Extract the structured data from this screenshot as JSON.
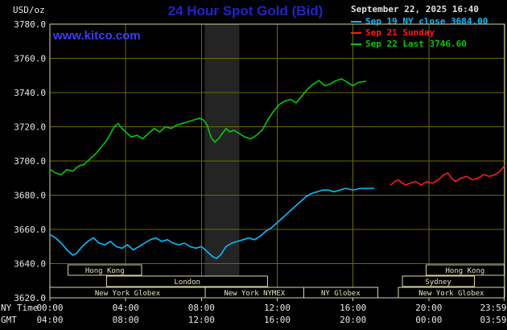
{
  "header": {
    "units": "USD/oz",
    "title": "24 Hour Spot Gold (Bid)",
    "datetime": "September 22, 2025 16:40",
    "watermark": "www.kitco.com"
  },
  "legend": [
    {
      "label": "Sep 19 NY close 3684.00",
      "color": "#00bfff"
    },
    {
      "label": "Sep 21 Sunday",
      "color": "#ff1a1a"
    },
    {
      "label": "Sep 22 Last 3746.60",
      "color": "#00cc00"
    }
  ],
  "chart_data": {
    "type": "line",
    "title": "24 Hour Spot Gold (Bid)",
    "xlabel": "time (NY Time / GMT)",
    "ylabel": "USD/oz",
    "ylim": [
      3620,
      3780
    ],
    "xlim_hours": [
      0,
      24
    ],
    "grid": true,
    "legend_position": "top-right",
    "y_ticks": [
      3620,
      3640,
      3660,
      3680,
      3700,
      3720,
      3740,
      3760,
      3780
    ],
    "x_axis_rows": [
      "NY Time",
      "GMT"
    ],
    "x_ticks": [
      {
        "hour": 0,
        "ny": "00:00",
        "gmt": "04:00"
      },
      {
        "hour": 4,
        "ny": "04:00",
        "gmt": "08:00"
      },
      {
        "hour": 8,
        "ny": "08:00",
        "gmt": "12:00"
      },
      {
        "hour": 12,
        "ny": "12:00",
        "gmt": "16:00"
      },
      {
        "hour": 16,
        "ny": "16:00",
        "gmt": "20:00"
      },
      {
        "hour": 20,
        "ny": "20:00",
        "gmt": "00:00"
      },
      {
        "hour": 23.983,
        "ny": "23:59",
        "gmt": "03:59"
      }
    ],
    "colors": {
      "background": "#000000",
      "grid": "#6b6b00",
      "frame": "#d6d6a0",
      "text": "#e8e8e8",
      "session_text": "#e6e6b8",
      "band": "#242424"
    },
    "shaded_bands": [
      {
        "start": 8.17,
        "end": 10.0
      }
    ],
    "sessions": [
      {
        "row": 0,
        "label": "Hong Kong",
        "start": 0.95,
        "end": 4.85
      },
      {
        "row": 0,
        "label": "Hong Kong",
        "start": 19.85,
        "end": 23.98
      },
      {
        "row": 1,
        "label": "London",
        "start": 3.0,
        "end": 11.5
      },
      {
        "row": 1,
        "label": "Sydney",
        "start": 18.6,
        "end": 22.4
      },
      {
        "row": 2,
        "label": "New York Globex",
        "start": 0.0,
        "end": 8.2
      },
      {
        "row": 2,
        "label": "New York NYMEX",
        "start": 8.2,
        "end": 13.4
      },
      {
        "row": 2,
        "label": "NY Globex",
        "start": 13.4,
        "end": 17.3
      },
      {
        "row": 2,
        "label": "New York Globex",
        "start": 18.4,
        "end": 23.98
      }
    ],
    "series": [
      {
        "name": "Sep 19 NY close 3684.00",
        "color": "#00bfff",
        "close": 3684.0,
        "points": [
          [
            0,
            3657
          ],
          [
            0.3,
            3655
          ],
          [
            0.6,
            3652
          ],
          [
            0.9,
            3648
          ],
          [
            1.2,
            3645
          ],
          [
            1.4,
            3646
          ],
          [
            1.7,
            3650
          ],
          [
            2.0,
            3653
          ],
          [
            2.3,
            3655
          ],
          [
            2.6,
            3652
          ],
          [
            2.9,
            3651
          ],
          [
            3.2,
            3653
          ],
          [
            3.5,
            3650
          ],
          [
            3.8,
            3649
          ],
          [
            4.1,
            3651
          ],
          [
            4.4,
            3648
          ],
          [
            4.7,
            3650
          ],
          [
            5.0,
            3652
          ],
          [
            5.3,
            3654
          ],
          [
            5.6,
            3655
          ],
          [
            5.9,
            3653
          ],
          [
            6.2,
            3654
          ],
          [
            6.5,
            3652
          ],
          [
            6.8,
            3651
          ],
          [
            7.1,
            3652
          ],
          [
            7.4,
            3650
          ],
          [
            7.7,
            3649
          ],
          [
            8.0,
            3650
          ],
          [
            8.3,
            3647
          ],
          [
            8.6,
            3644
          ],
          [
            8.8,
            3643
          ],
          [
            9.0,
            3645
          ],
          [
            9.3,
            3650
          ],
          [
            9.6,
            3652
          ],
          [
            9.9,
            3653
          ],
          [
            10.2,
            3654
          ],
          [
            10.5,
            3655
          ],
          [
            10.8,
            3654
          ],
          [
            11.1,
            3656
          ],
          [
            11.4,
            3659
          ],
          [
            11.7,
            3661
          ],
          [
            12.0,
            3664
          ],
          [
            12.3,
            3667
          ],
          [
            12.6,
            3670
          ],
          [
            12.9,
            3673
          ],
          [
            13.2,
            3676
          ],
          [
            13.5,
            3679
          ],
          [
            13.8,
            3681
          ],
          [
            14.1,
            3682
          ],
          [
            14.4,
            3683
          ],
          [
            14.7,
            3683
          ],
          [
            15.0,
            3682
          ],
          [
            15.3,
            3683
          ],
          [
            15.6,
            3684
          ],
          [
            16.0,
            3683
          ],
          [
            16.4,
            3684
          ],
          [
            16.8,
            3684
          ],
          [
            17.1,
            3684
          ]
        ]
      },
      {
        "name": "Sep 21 Sunday",
        "color": "#ff1a1a",
        "points": [
          [
            18.0,
            3686
          ],
          [
            18.2,
            3688
          ],
          [
            18.4,
            3689
          ],
          [
            18.6,
            3687
          ],
          [
            18.8,
            3686
          ],
          [
            19.0,
            3687
          ],
          [
            19.3,
            3688
          ],
          [
            19.6,
            3686
          ],
          [
            19.9,
            3688
          ],
          [
            20.2,
            3687
          ],
          [
            20.5,
            3689
          ],
          [
            20.8,
            3692
          ],
          [
            21.0,
            3693
          ],
          [
            21.2,
            3690
          ],
          [
            21.4,
            3688
          ],
          [
            21.7,
            3690
          ],
          [
            22.0,
            3691
          ],
          [
            22.3,
            3689
          ],
          [
            22.6,
            3690
          ],
          [
            22.9,
            3692
          ],
          [
            23.2,
            3691
          ],
          [
            23.5,
            3692
          ],
          [
            23.75,
            3694
          ],
          [
            23.98,
            3697
          ]
        ]
      },
      {
        "name": "Sep 22 Last 3746.60",
        "color": "#00cc00",
        "last": 3746.6,
        "points": [
          [
            0,
            3695
          ],
          [
            0.3,
            3693
          ],
          [
            0.6,
            3692
          ],
          [
            0.9,
            3695
          ],
          [
            1.2,
            3694
          ],
          [
            1.5,
            3697
          ],
          [
            1.8,
            3698
          ],
          [
            2.1,
            3701
          ],
          [
            2.4,
            3704
          ],
          [
            2.7,
            3708
          ],
          [
            3.0,
            3712
          ],
          [
            3.2,
            3716
          ],
          [
            3.4,
            3720
          ],
          [
            3.6,
            3722
          ],
          [
            3.8,
            3719
          ],
          [
            4.0,
            3717
          ],
          [
            4.3,
            3714
          ],
          [
            4.6,
            3715
          ],
          [
            4.9,
            3713
          ],
          [
            5.2,
            3716
          ],
          [
            5.5,
            3719
          ],
          [
            5.8,
            3717
          ],
          [
            6.1,
            3720
          ],
          [
            6.4,
            3719
          ],
          [
            6.7,
            3721
          ],
          [
            7.0,
            3722
          ],
          [
            7.3,
            3723
          ],
          [
            7.6,
            3724
          ],
          [
            7.9,
            3725
          ],
          [
            8.1,
            3724
          ],
          [
            8.3,
            3721
          ],
          [
            8.5,
            3714
          ],
          [
            8.7,
            3711
          ],
          [
            8.9,
            3713
          ],
          [
            9.1,
            3716
          ],
          [
            9.3,
            3719
          ],
          [
            9.5,
            3717
          ],
          [
            9.7,
            3718
          ],
          [
            10.0,
            3716
          ],
          [
            10.3,
            3714
          ],
          [
            10.6,
            3713
          ],
          [
            10.9,
            3715
          ],
          [
            11.2,
            3718
          ],
          [
            11.5,
            3724
          ],
          [
            11.8,
            3729
          ],
          [
            12.1,
            3733
          ],
          [
            12.4,
            3735
          ],
          [
            12.7,
            3736
          ],
          [
            13.0,
            3734
          ],
          [
            13.3,
            3738
          ],
          [
            13.6,
            3742
          ],
          [
            13.9,
            3745
          ],
          [
            14.2,
            3747
          ],
          [
            14.5,
            3744
          ],
          [
            14.8,
            3745
          ],
          [
            15.1,
            3747
          ],
          [
            15.4,
            3748
          ],
          [
            15.7,
            3746
          ],
          [
            16.0,
            3744
          ],
          [
            16.3,
            3746
          ],
          [
            16.67,
            3746.6
          ]
        ]
      }
    ]
  }
}
